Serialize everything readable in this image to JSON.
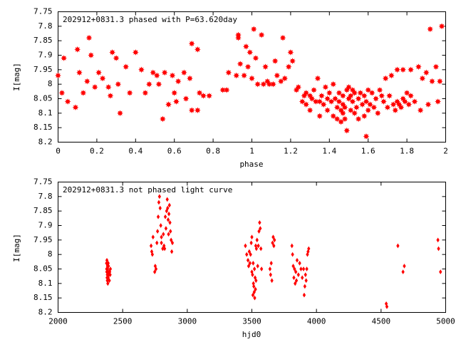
{
  "colors": {
    "points": "#ff0000",
    "axes": "#000000",
    "background": "#ffffff"
  },
  "chart_data": [
    {
      "type": "scatter",
      "title": "202912+0831.3 phased with P=63.620day",
      "xlabel": "phase",
      "ylabel": "I[mag]",
      "xlim": [
        0,
        2
      ],
      "ylim": [
        7.75,
        8.2
      ],
      "y_inverted": true,
      "grid": false,
      "legend": "none",
      "marker": "filled-star",
      "xticks": [
        "0",
        "0.2",
        "0.4",
        "0.6",
        "0.8",
        "1",
        "1.2",
        "1.4",
        "1.6",
        "1.8",
        "2"
      ],
      "yticks": [
        "7.75",
        "7.8",
        "7.85",
        "7.9",
        "7.95",
        "8",
        "8.05",
        "8.1",
        "8.15",
        "8.2"
      ],
      "points": [
        [
          0.0,
          7.97
        ],
        [
          0.02,
          8.03
        ],
        [
          0.03,
          7.91
        ],
        [
          0.05,
          8.06
        ],
        [
          0.09,
          8.08
        ],
        [
          0.1,
          7.88
        ],
        [
          0.11,
          7.96
        ],
        [
          0.13,
          8.03
        ],
        [
          0.15,
          7.99
        ],
        [
          0.16,
          7.84
        ],
        [
          0.17,
          7.9
        ],
        [
          0.19,
          8.01
        ],
        [
          0.21,
          7.96
        ],
        [
          0.23,
          7.98
        ],
        [
          0.26,
          8.01
        ],
        [
          0.27,
          8.04
        ],
        [
          0.28,
          7.89
        ],
        [
          0.3,
          7.91
        ],
        [
          0.31,
          8.0
        ],
        [
          0.32,
          8.1
        ],
        [
          0.35,
          7.94
        ],
        [
          0.37,
          8.03
        ],
        [
          0.4,
          7.89
        ],
        [
          0.43,
          7.95
        ],
        [
          0.45,
          8.03
        ],
        [
          0.47,
          8.0
        ],
        [
          0.49,
          7.96
        ],
        [
          0.51,
          7.97
        ],
        [
          0.52,
          8.0
        ],
        [
          0.54,
          8.12
        ],
        [
          0.55,
          7.96
        ],
        [
          0.57,
          8.07
        ],
        [
          0.59,
          7.97
        ],
        [
          0.6,
          8.03
        ],
        [
          0.61,
          8.06
        ],
        [
          0.62,
          7.99
        ],
        [
          0.65,
          7.96
        ],
        [
          0.66,
          8.05
        ],
        [
          0.68,
          7.98
        ],
        [
          0.69,
          8.09
        ],
        [
          0.69,
          7.86
        ],
        [
          0.72,
          8.09
        ],
        [
          0.72,
          7.88
        ],
        [
          0.73,
          8.03
        ],
        [
          0.75,
          8.04
        ],
        [
          0.78,
          8.04
        ],
        [
          0.85,
          8.02
        ],
        [
          0.87,
          8.02
        ],
        [
          0.88,
          7.96
        ],
        [
          0.92,
          7.97
        ],
        [
          0.93,
          7.84
        ],
        [
          0.93,
          7.83
        ],
        [
          0.94,
          7.93
        ],
        [
          0.96,
          7.97
        ],
        [
          0.97,
          7.87
        ],
        [
          0.98,
          7.94
        ],
        [
          0.99,
          7.89
        ],
        [
          1.0,
          7.98
        ],
        [
          1.01,
          7.81
        ],
        [
          1.02,
          7.91
        ],
        [
          1.03,
          8.0
        ],
        [
          1.05,
          7.83
        ],
        [
          1.06,
          8.0
        ],
        [
          1.07,
          7.94
        ],
        [
          1.08,
          7.99
        ],
        [
          1.09,
          8.0
        ],
        [
          1.11,
          8.0
        ],
        [
          1.12,
          7.92
        ],
        [
          1.13,
          7.97
        ],
        [
          1.15,
          7.99
        ],
        [
          1.16,
          7.84
        ],
        [
          1.17,
          7.98
        ],
        [
          1.19,
          7.94
        ],
        [
          1.2,
          7.89
        ],
        [
          1.21,
          7.92
        ],
        [
          1.23,
          8.02
        ],
        [
          1.24,
          8.01
        ],
        [
          1.26,
          8.06
        ],
        [
          1.27,
          8.04
        ],
        [
          1.28,
          8.07
        ],
        [
          1.28,
          8.03
        ],
        [
          1.3,
          8.04
        ],
        [
          1.3,
          8.09
        ],
        [
          1.31,
          8.05
        ],
        [
          1.32,
          8.02
        ],
        [
          1.33,
          8.06
        ],
        [
          1.34,
          7.98
        ],
        [
          1.35,
          8.06
        ],
        [
          1.35,
          8.11
        ],
        [
          1.36,
          8.04
        ],
        [
          1.37,
          8.07
        ],
        [
          1.38,
          8.01
        ],
        [
          1.39,
          8.05
        ],
        [
          1.39,
          8.09
        ],
        [
          1.4,
          8.03
        ],
        [
          1.41,
          8.06
        ],
        [
          1.42,
          8.11
        ],
        [
          1.42,
          8.0
        ],
        [
          1.43,
          8.05
        ],
        [
          1.44,
          8.08
        ],
        [
          1.44,
          8.12
        ],
        [
          1.45,
          8.03
        ],
        [
          1.45,
          8.06
        ],
        [
          1.46,
          8.09
        ],
        [
          1.46,
          8.13
        ],
        [
          1.47,
          8.07
        ],
        [
          1.47,
          8.1
        ],
        [
          1.47,
          8.04
        ],
        [
          1.48,
          8.12
        ],
        [
          1.48,
          8.08
        ],
        [
          1.49,
          8.02
        ],
        [
          1.49,
          8.16
        ],
        [
          1.5,
          8.05
        ],
        [
          1.5,
          8.01
        ],
        [
          1.51,
          8.04
        ],
        [
          1.51,
          8.09
        ],
        [
          1.52,
          8.02
        ],
        [
          1.52,
          8.06
        ],
        [
          1.53,
          8.03
        ],
        [
          1.53,
          8.1
        ],
        [
          1.54,
          8.08
        ],
        [
          1.55,
          8.05
        ],
        [
          1.55,
          8.12
        ],
        [
          1.56,
          8.03
        ],
        [
          1.57,
          8.07
        ],
        [
          1.58,
          8.11
        ],
        [
          1.58,
          8.04
        ],
        [
          1.59,
          8.06
        ],
        [
          1.59,
          8.18
        ],
        [
          1.6,
          8.02
        ],
        [
          1.6,
          8.09
        ],
        [
          1.61,
          8.07
        ],
        [
          1.62,
          8.03
        ],
        [
          1.63,
          8.08
        ],
        [
          1.64,
          8.05
        ],
        [
          1.65,
          8.1
        ],
        [
          1.66,
          8.02
        ],
        [
          1.67,
          8.04
        ],
        [
          1.68,
          8.06
        ],
        [
          1.69,
          7.98
        ],
        [
          1.7,
          8.08
        ],
        [
          1.71,
          8.04
        ],
        [
          1.72,
          7.97
        ],
        [
          1.73,
          8.07
        ],
        [
          1.74,
          8.09
        ],
        [
          1.75,
          8.06
        ],
        [
          1.75,
          7.95
        ],
        [
          1.76,
          8.07
        ],
        [
          1.77,
          8.08
        ],
        [
          1.78,
          8.05
        ],
        [
          1.78,
          7.95
        ],
        [
          1.79,
          8.06
        ],
        [
          1.8,
          8.03
        ],
        [
          1.81,
          8.07
        ],
        [
          1.82,
          7.95
        ],
        [
          1.82,
          8.04
        ],
        [
          1.84,
          8.06
        ],
        [
          1.86,
          7.94
        ],
        [
          1.87,
          8.09
        ],
        [
          1.88,
          7.98
        ],
        [
          1.9,
          7.96
        ],
        [
          1.91,
          8.07
        ],
        [
          1.92,
          7.81
        ],
        [
          1.93,
          7.99
        ],
        [
          1.95,
          7.94
        ],
        [
          1.96,
          8.06
        ],
        [
          1.97,
          7.99
        ],
        [
          1.98,
          7.8
        ]
      ]
    },
    {
      "type": "scatter",
      "title": "202912+0831.3 not phased light curve",
      "xlabel": "hjd0",
      "ylabel": "I[mag]",
      "xlim": [
        2000,
        5000
      ],
      "ylim": [
        7.75,
        8.2
      ],
      "y_inverted": true,
      "grid": false,
      "legend": "none",
      "marker": "small-diamond",
      "xticks": [
        "2000",
        "2500",
        "3000",
        "3500",
        "4000",
        "4500",
        "5000"
      ],
      "yticks": [
        "7.75",
        "7.8",
        "7.85",
        "7.9",
        "7.95",
        "8",
        "8.05",
        "8.1",
        "8.15",
        "8.2"
      ],
      "points": [
        [
          2375,
          8.03
        ],
        [
          2376,
          8.05
        ],
        [
          2377,
          8.06
        ],
        [
          2378,
          8.02
        ],
        [
          2379,
          8.08
        ],
        [
          2380,
          8.06
        ],
        [
          2381,
          8.09
        ],
        [
          2382,
          8.04
        ],
        [
          2383,
          8.07
        ],
        [
          2384,
          8.05
        ],
        [
          2385,
          8.1
        ],
        [
          2386,
          8.06
        ],
        [
          2388,
          8.08
        ],
        [
          2390,
          8.04
        ],
        [
          2392,
          8.07
        ],
        [
          2395,
          8.06
        ],
        [
          2397,
          8.09
        ],
        [
          2400,
          8.06
        ],
        [
          2403,
          8.07
        ],
        [
          2405,
          8.05
        ],
        [
          2381,
          8.07
        ],
        [
          2388,
          8.03
        ],
        [
          2720,
          7.97
        ],
        [
          2725,
          7.99
        ],
        [
          2730,
          8.0
        ],
        [
          2735,
          7.94
        ],
        [
          2748,
          8.06
        ],
        [
          2752,
          8.04
        ],
        [
          2758,
          8.05
        ],
        [
          2765,
          7.96
        ],
        [
          2770,
          7.92
        ],
        [
          2775,
          7.87
        ],
        [
          2780,
          7.82
        ],
        [
          2785,
          7.8
        ],
        [
          2790,
          7.84
        ],
        [
          2795,
          7.9
        ],
        [
          2800,
          7.96
        ],
        [
          2810,
          7.98
        ],
        [
          2815,
          7.93
        ],
        [
          2820,
          7.97
        ],
        [
          2830,
          7.87
        ],
        [
          2835,
          7.91
        ],
        [
          2840,
          7.85
        ],
        [
          2845,
          7.81
        ],
        [
          2848,
          7.84
        ],
        [
          2852,
          7.88
        ],
        [
          2855,
          7.93
        ],
        [
          2858,
          7.86
        ],
        [
          2862,
          7.83
        ],
        [
          2866,
          7.89
        ],
        [
          2870,
          7.92
        ],
        [
          2875,
          7.95
        ],
        [
          2880,
          7.99
        ],
        [
          2885,
          7.96
        ],
        [
          2800,
          7.94
        ],
        [
          2825,
          7.98
        ],
        [
          3450,
          7.97
        ],
        [
          3460,
          8.0
        ],
        [
          3470,
          8.02
        ],
        [
          3475,
          8.04
        ],
        [
          3480,
          7.99
        ],
        [
          3485,
          8.03
        ],
        [
          3490,
          8.0
        ],
        [
          3495,
          7.96
        ],
        [
          3500,
          7.94
        ],
        [
          3505,
          8.07
        ],
        [
          3510,
          8.03
        ],
        [
          3512,
          8.1
        ],
        [
          3515,
          8.11
        ],
        [
          3518,
          8.13
        ],
        [
          3520,
          8.05
        ],
        [
          3522,
          8.15
        ],
        [
          3525,
          8.08
        ],
        [
          3528,
          8.12
        ],
        [
          3530,
          7.97
        ],
        [
          3532,
          8.09
        ],
        [
          3535,
          7.98
        ],
        [
          3540,
          7.95
        ],
        [
          3545,
          8.04
        ],
        [
          3550,
          7.97
        ],
        [
          3555,
          7.92
        ],
        [
          3560,
          7.89
        ],
        [
          3565,
          7.91
        ],
        [
          3570,
          7.98
        ],
        [
          3575,
          8.05
        ],
        [
          3500,
          8.06
        ],
        [
          3508,
          8.14
        ],
        [
          3640,
          8.05
        ],
        [
          3645,
          8.07
        ],
        [
          3650,
          8.03
        ],
        [
          3655,
          8.09
        ],
        [
          3660,
          7.96
        ],
        [
          3665,
          7.94
        ],
        [
          3670,
          7.97
        ],
        [
          3675,
          7.95
        ],
        [
          3810,
          7.97
        ],
        [
          3815,
          8.0
        ],
        [
          3820,
          8.04
        ],
        [
          3825,
          8.08
        ],
        [
          3830,
          8.05
        ],
        [
          3835,
          8.1
        ],
        [
          3840,
          8.06
        ],
        [
          3845,
          8.09
        ],
        [
          3850,
          8.02
        ],
        [
          3860,
          8.07
        ],
        [
          3870,
          8.03
        ],
        [
          3880,
          8.05
        ],
        [
          3890,
          8.08
        ],
        [
          3900,
          8.05
        ],
        [
          3905,
          8.14
        ],
        [
          3910,
          8.11
        ],
        [
          3915,
          8.07
        ],
        [
          3920,
          8.09
        ],
        [
          3925,
          8.05
        ],
        [
          3930,
          8.0
        ],
        [
          3935,
          7.99
        ],
        [
          3940,
          7.98
        ],
        [
          4540,
          8.17
        ],
        [
          4545,
          8.18
        ],
        [
          4630,
          7.97
        ],
        [
          4670,
          8.06
        ],
        [
          4680,
          8.04
        ],
        [
          4940,
          7.95
        ],
        [
          4945,
          7.98
        ],
        [
          4960,
          8.06
        ]
      ]
    }
  ]
}
